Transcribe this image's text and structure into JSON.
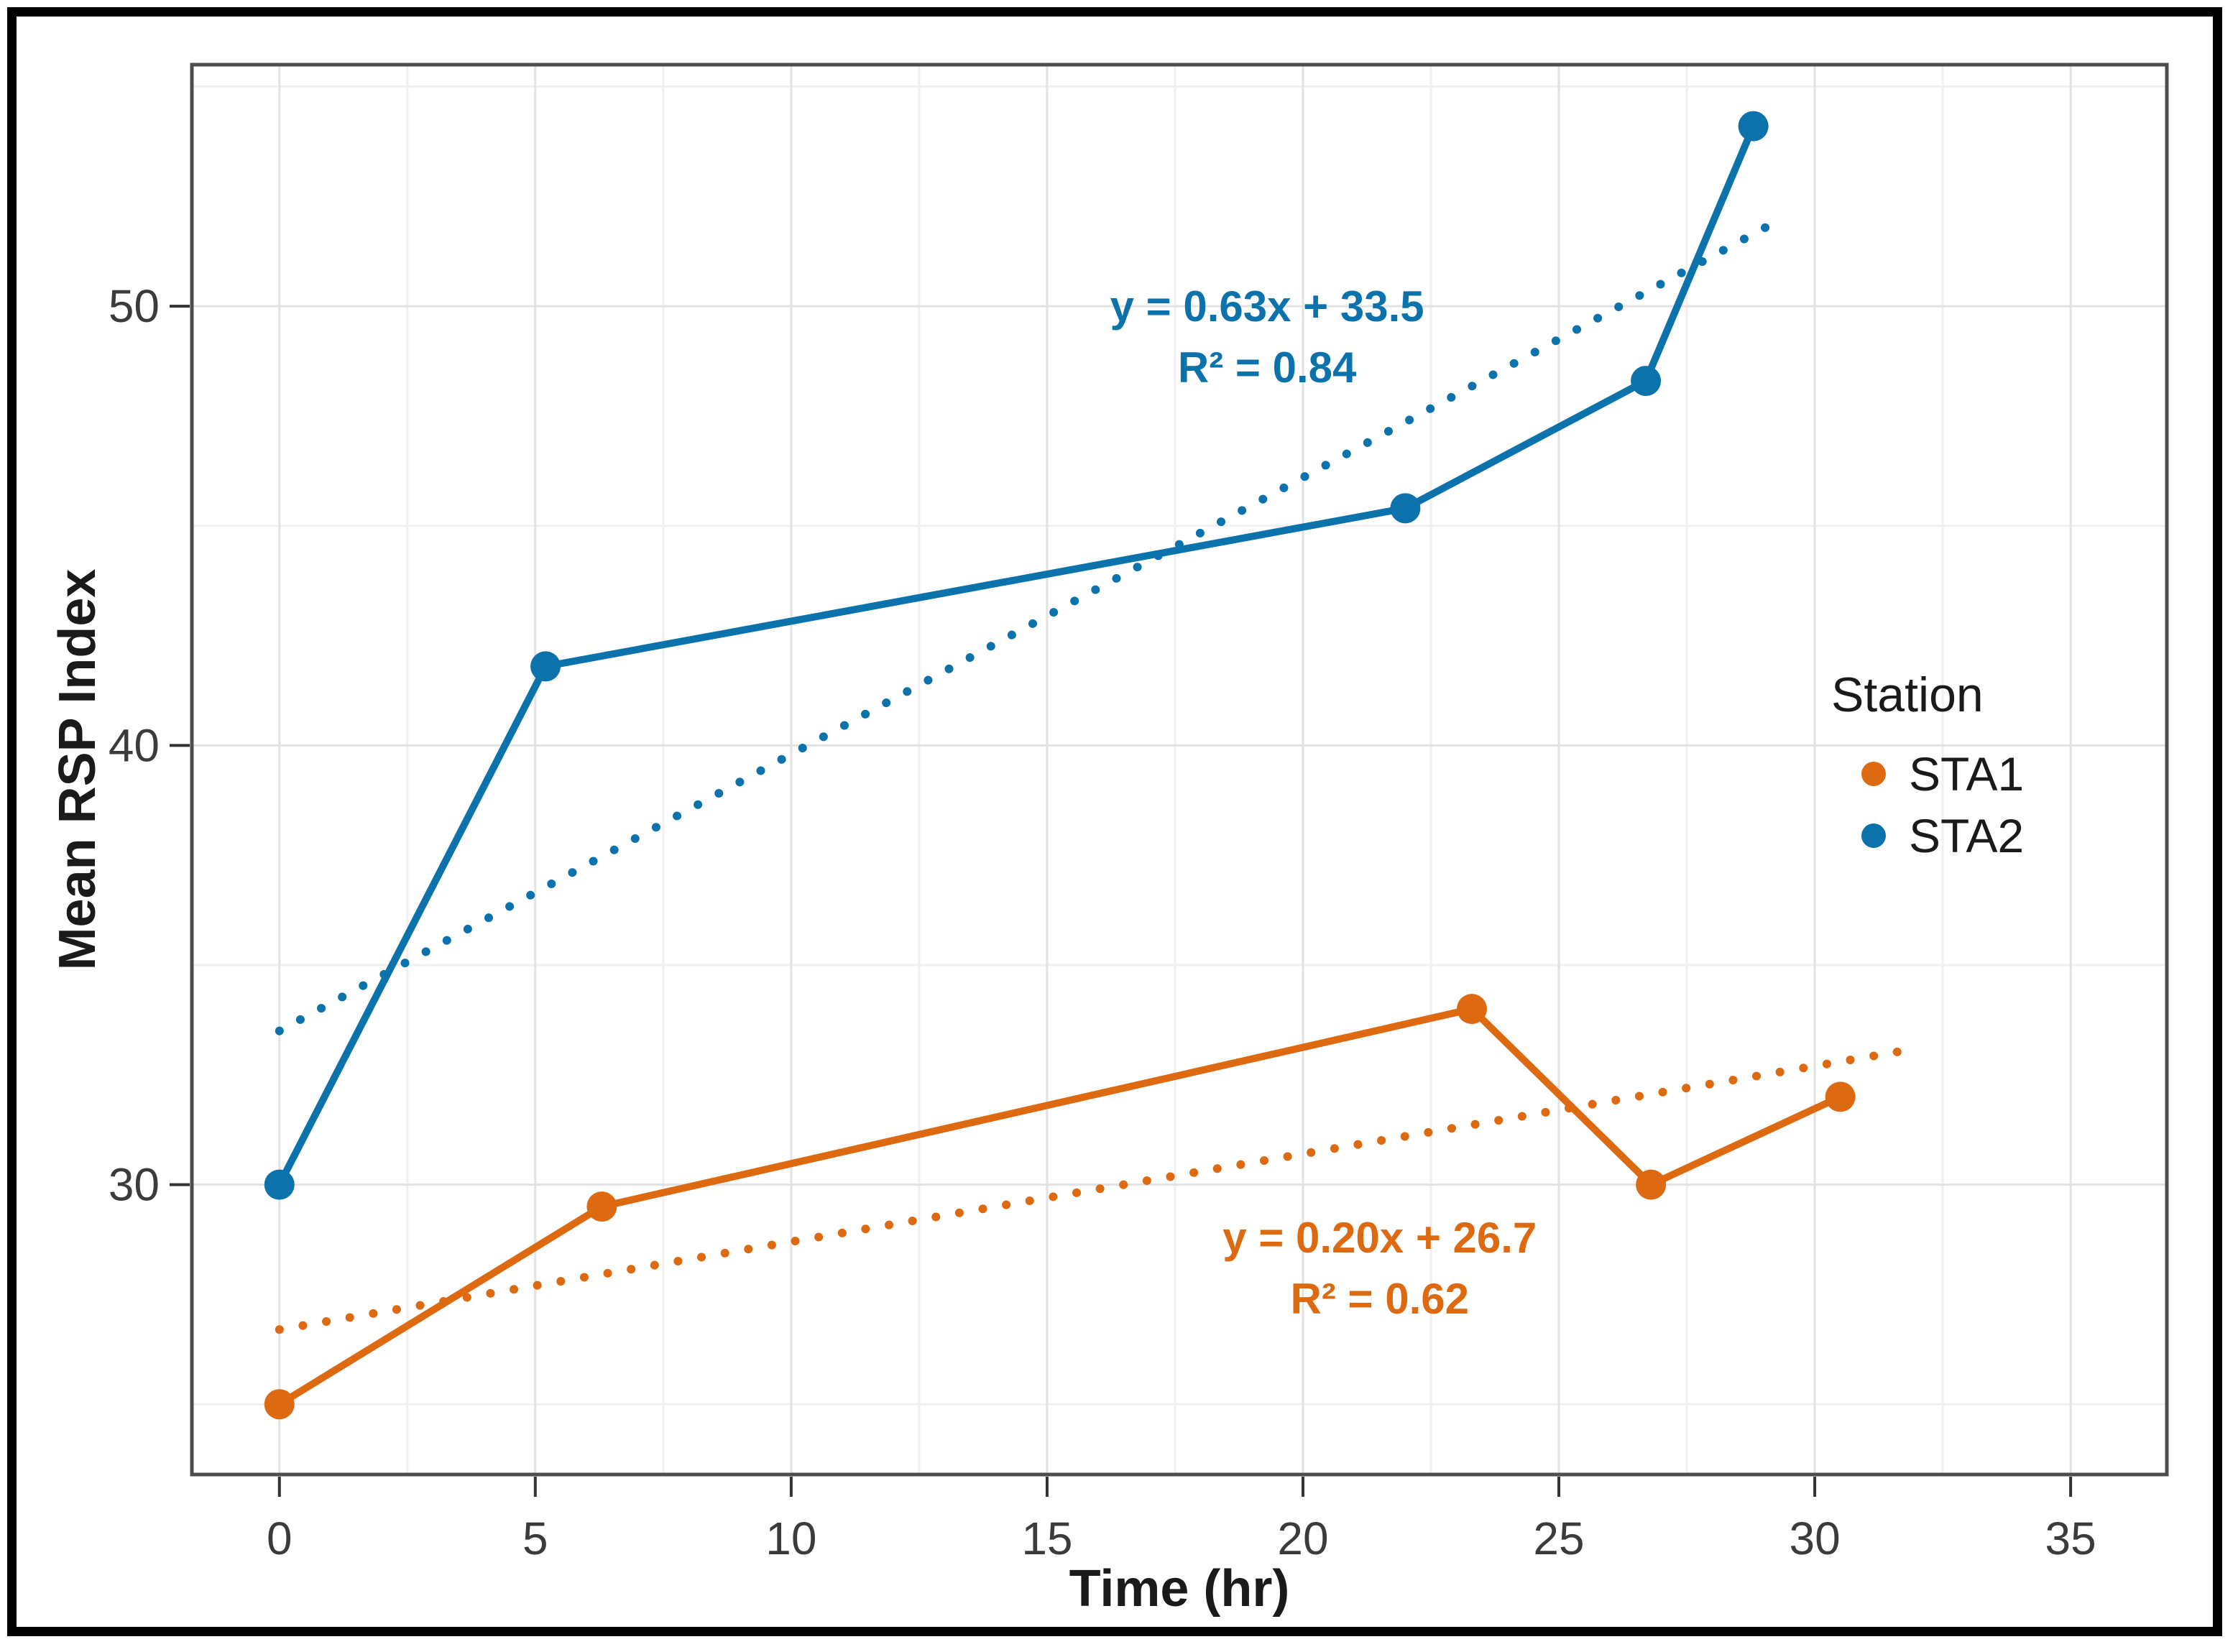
{
  "figure": {
    "background": "#ffffff",
    "frame_color": "#000000",
    "panel_border_color": "#4d4d4d",
    "major_grid_color": "#e2e2e2",
    "minor_grid_color": "#f0f0f0",
    "tick_color": "#333333",
    "tick_label_color": "#3b3b3b"
  },
  "chart_data": {
    "type": "line",
    "title": "",
    "xlabel": "Time (hr)",
    "ylabel": "Mean RSP Index",
    "xlim": [
      -1.71,
      36.88
    ],
    "ylim": [
      23.4,
      55.5
    ],
    "x_ticks": [
      0,
      5,
      10,
      15,
      20,
      25,
      30,
      35
    ],
    "y_ticks": [
      30,
      40,
      50
    ],
    "x_minor_ticks": [
      2.5,
      7.5,
      12.5,
      17.5,
      22.5,
      27.5,
      32.5
    ],
    "y_minor_ticks": [
      25,
      35,
      45,
      55
    ],
    "grid": true,
    "legend": {
      "title": "Station",
      "position": "right-inside",
      "items": [
        {
          "label": "STA1",
          "color": "#dd6910"
        },
        {
          "label": "STA2",
          "color": "#0c72ac"
        }
      ]
    },
    "series": [
      {
        "name": "STA1",
        "color": "#dd6910",
        "x": [
          0,
          6.3,
          23.3,
          26.8,
          30.5
        ],
        "y": [
          25,
          29.5,
          34,
          30,
          32
        ],
        "trend": {
          "slope": 0.2,
          "intercept": 26.7,
          "r2": 0.62,
          "x_range": [
            0,
            32
          ],
          "style": "dotted"
        },
        "annotation": {
          "x": 21.5,
          "y": 28.8,
          "lines": [
            "y = 0.20x + 26.7",
            "R² = 0.62"
          ]
        }
      },
      {
        "name": "STA2",
        "color": "#0c72ac",
        "x": [
          0,
          5.2,
          22,
          26.7,
          28.8
        ],
        "y": [
          30,
          41.8,
          45.4,
          48.3,
          54.1
        ],
        "trend": {
          "slope": 0.63,
          "intercept": 33.5,
          "r2": 0.84,
          "x_range": [
            0,
            29.3
          ],
          "style": "dotted"
        },
        "annotation": {
          "x": 19.3,
          "y": 50.0,
          "lines": [
            "y = 0.63x + 33.5",
            "R² = 0.84"
          ]
        }
      }
    ]
  }
}
